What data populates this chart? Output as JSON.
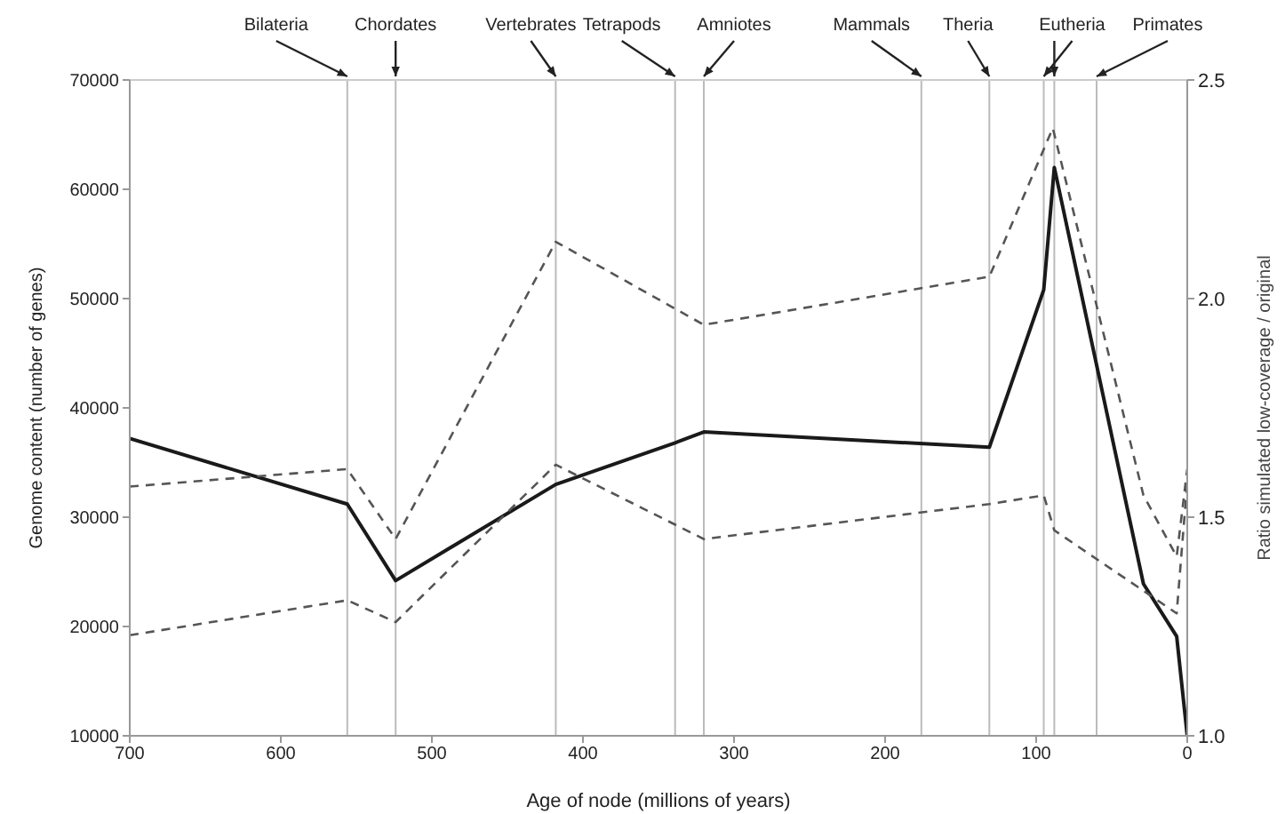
{
  "chart_data": {
    "type": "line",
    "xlabel": "Age of node (millions of years)",
    "ylabel": "Genome content (number of genes)",
    "y2label": "Ratio simulated low-coverage / original",
    "xlim": [
      700,
      0
    ],
    "xticks": [
      700,
      600,
      500,
      400,
      300,
      200,
      100,
      0
    ],
    "ylim": [
      10000,
      70000
    ],
    "yticks": [
      10000,
      20000,
      30000,
      40000,
      50000,
      60000,
      70000
    ],
    "y2lim": [
      1.0,
      2.5
    ],
    "y2ticks": [
      {
        "value": 1.0,
        "label": "1.0"
      },
      1.5,
      {
        "value": 2.0,
        "label": "2.0"
      },
      2.5
    ],
    "marker": "none",
    "series": [
      {
        "color": "#1a1a1a",
        "line_style": "solid",
        "x": [
          700,
          556,
          524,
          418,
          339,
          320,
          131,
          95,
          88,
          29,
          7,
          0
        ],
        "values": [
          37200,
          31200,
          24200,
          33000,
          36800,
          37800,
          36400,
          50800,
          62000,
          23900,
          19100,
          10000
        ]
      },
      {
        "color": "#555555",
        "line_style": "dashed",
        "axis": "y2",
        "x": [
          700,
          556,
          524,
          418,
          320,
          131,
          89,
          29,
          7,
          0
        ],
        "values": [
          1.57,
          1.61,
          1.45,
          2.13,
          1.94,
          2.05,
          2.39,
          1.55,
          1.41,
          1.61
        ]
      },
      {
        "color": "#555555",
        "line_style": "dashed",
        "axis": "y2",
        "x": [
          700,
          556,
          524,
          418,
          320,
          131,
          95,
          88,
          7,
          0
        ],
        "values": [
          1.23,
          1.31,
          1.26,
          1.62,
          1.45,
          1.53,
          1.55,
          1.47,
          1.28,
          1.58
        ]
      }
    ],
    "ref_lines": [
      {
        "axis": "x",
        "value": 556,
        "label": "Bilateria",
        "color": "#bbbbbb"
      },
      {
        "axis": "x",
        "value": 524,
        "label": "Chordates",
        "color": "#bbbbbb"
      },
      {
        "axis": "x",
        "value": 418,
        "label": "Vertebrates",
        "color": "#bbbbbb"
      },
      {
        "axis": "x",
        "value": 339,
        "label": "Tetrapods",
        "color": "#bbbbbb"
      },
      {
        "axis": "x",
        "value": 320,
        "label": "Amniotes",
        "color": "#bbbbbb"
      },
      {
        "axis": "x",
        "value": 176,
        "label": "Mammals",
        "color": "#bbbbbb"
      },
      {
        "axis": "x",
        "value": 131,
        "label": "Theria",
        "color": "#bbbbbb"
      },
      {
        "axis": "x",
        "value": 95,
        "label": "Eutheria",
        "color": "#bbbbbb"
      },
      {
        "axis": "x",
        "value": 88,
        "label": null,
        "color": "#bbbbbb"
      },
      {
        "axis": "x",
        "value": 60,
        "label": "Primates",
        "color": "#bbbbbb"
      }
    ]
  }
}
